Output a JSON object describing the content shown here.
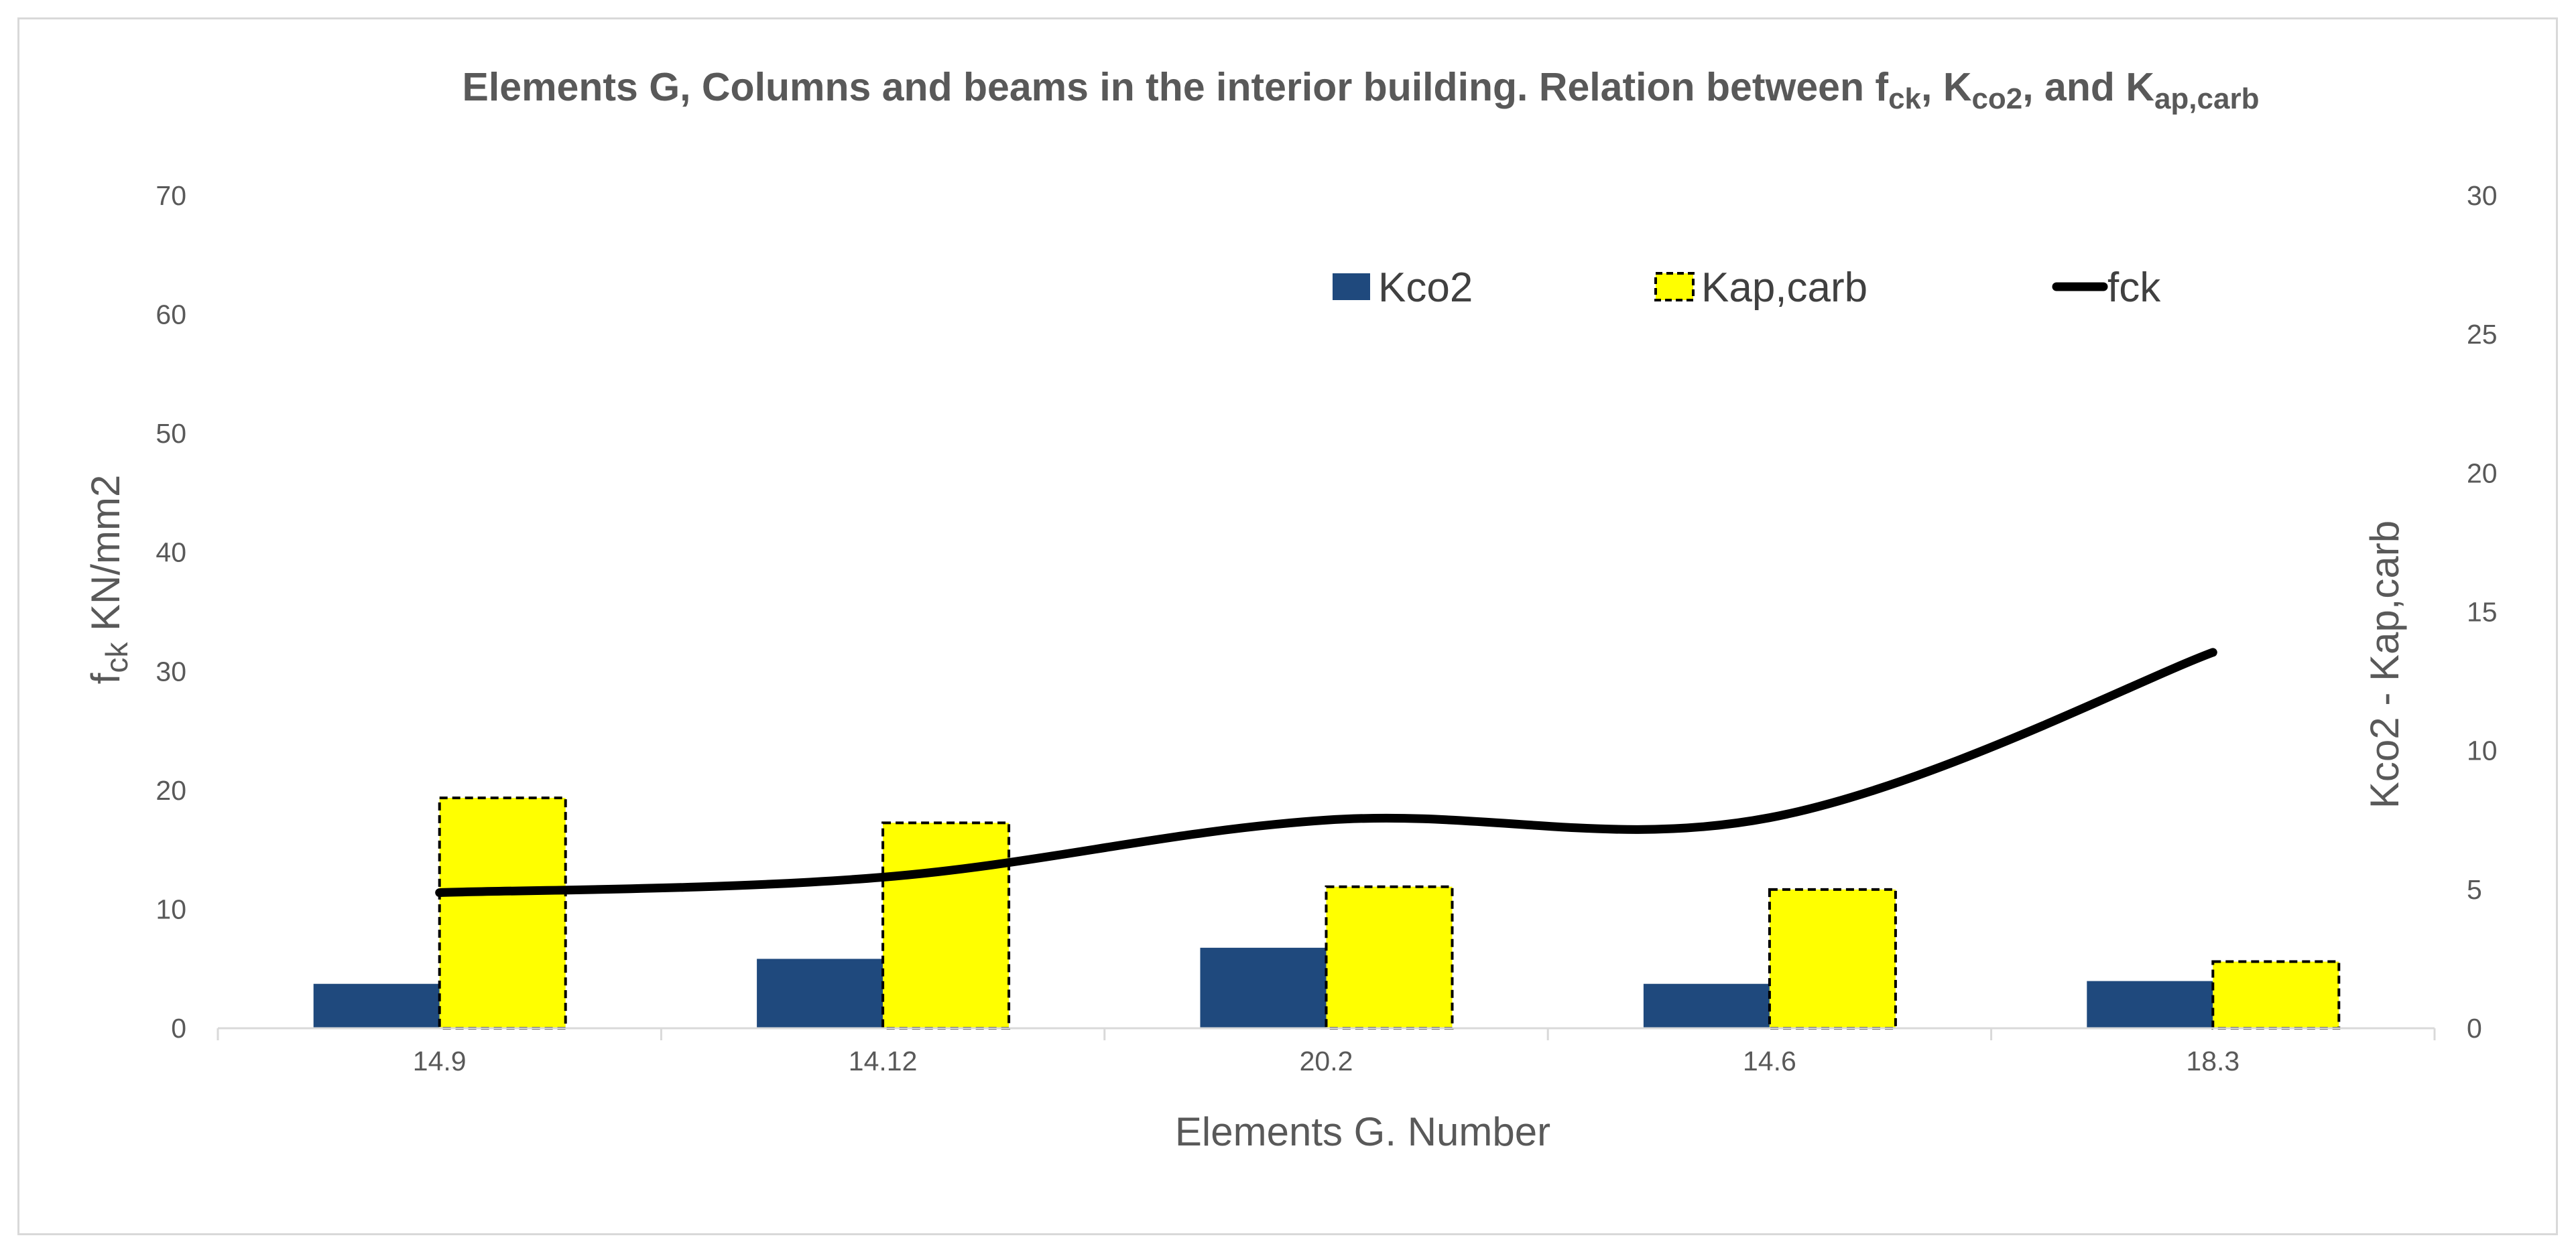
{
  "chart_data": {
    "type": "bar",
    "title": {
      "parts": [
        {
          "text": "Elements G, Columns and beams in the interior building. Relation between f",
          "sub": false
        },
        {
          "text": "ck",
          "sub": true
        },
        {
          "text": ", K",
          "sub": false
        },
        {
          "text": "co2",
          "sub": true
        },
        {
          "text": ", and K",
          "sub": false
        },
        {
          "text": "ap,carb",
          "sub": true
        }
      ]
    },
    "xlabel": "Elements G. Number",
    "ylabel": {
      "main": "f",
      "sub": "ck",
      "rest": " KN/mm2"
    },
    "y2label": "Kco2 - Kap,carb",
    "categories": [
      "14.9",
      "14.12",
      "20.2",
      "14.6",
      "18.3"
    ],
    "y_left": {
      "min": 0,
      "max": 70,
      "ticks": [
        0,
        10,
        20,
        30,
        40,
        50,
        60,
        70
      ]
    },
    "y_right": {
      "min": 0,
      "max": 30,
      "ticks": [
        0,
        5,
        10,
        15,
        20,
        25,
        30
      ]
    },
    "grid": false,
    "legend_position": "top-right",
    "series": [
      {
        "name": "Kco2",
        "kind": "bar",
        "axis": "right",
        "color": "#1f497d",
        "values": [
          1.6,
          2.5,
          2.9,
          1.6,
          1.7
        ]
      },
      {
        "name": "Kap,carb",
        "kind": "bar",
        "axis": "right",
        "color": "#ffff00",
        "border": "dashed",
        "values": [
          8.3,
          7.4,
          5.1,
          5.0,
          2.4
        ]
      },
      {
        "name": "fck",
        "kind": "line",
        "axis": "left",
        "color": "#000000",
        "values": [
          11.4,
          12.7,
          17.5,
          17.7,
          31.6
        ]
      }
    ]
  }
}
